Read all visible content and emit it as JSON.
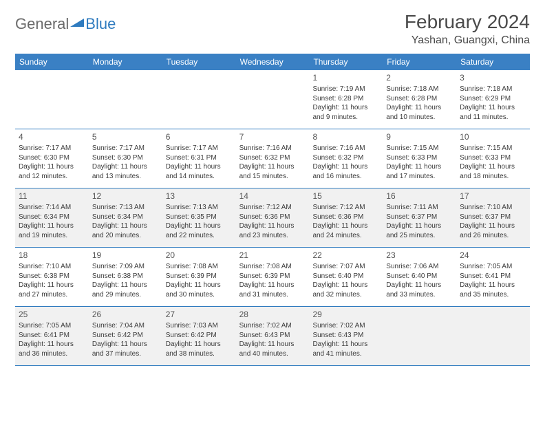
{
  "logo": {
    "general": "General",
    "blue": "Blue",
    "blue_color": "#2f7bbf"
  },
  "title": "February 2024",
  "location": "Yashan, Guangxi, China",
  "colors": {
    "header_bg": "#3a80c4",
    "row_border": "#2f7bbf",
    "shaded_bg": "#f1f1f1"
  },
  "weekdays": [
    "Sunday",
    "Monday",
    "Tuesday",
    "Wednesday",
    "Thursday",
    "Friday",
    "Saturday"
  ],
  "weeks": [
    [
      {
        "n": "",
        "sr": "",
        "ss": "",
        "dl": ""
      },
      {
        "n": "",
        "sr": "",
        "ss": "",
        "dl": ""
      },
      {
        "n": "",
        "sr": "",
        "ss": "",
        "dl": ""
      },
      {
        "n": "",
        "sr": "",
        "ss": "",
        "dl": ""
      },
      {
        "n": "1",
        "sr": "Sunrise: 7:19 AM",
        "ss": "Sunset: 6:28 PM",
        "dl": "Daylight: 11 hours and 9 minutes."
      },
      {
        "n": "2",
        "sr": "Sunrise: 7:18 AM",
        "ss": "Sunset: 6:28 PM",
        "dl": "Daylight: 11 hours and 10 minutes."
      },
      {
        "n": "3",
        "sr": "Sunrise: 7:18 AM",
        "ss": "Sunset: 6:29 PM",
        "dl": "Daylight: 11 hours and 11 minutes."
      }
    ],
    [
      {
        "n": "4",
        "sr": "Sunrise: 7:17 AM",
        "ss": "Sunset: 6:30 PM",
        "dl": "Daylight: 11 hours and 12 minutes."
      },
      {
        "n": "5",
        "sr": "Sunrise: 7:17 AM",
        "ss": "Sunset: 6:30 PM",
        "dl": "Daylight: 11 hours and 13 minutes."
      },
      {
        "n": "6",
        "sr": "Sunrise: 7:17 AM",
        "ss": "Sunset: 6:31 PM",
        "dl": "Daylight: 11 hours and 14 minutes."
      },
      {
        "n": "7",
        "sr": "Sunrise: 7:16 AM",
        "ss": "Sunset: 6:32 PM",
        "dl": "Daylight: 11 hours and 15 minutes."
      },
      {
        "n": "8",
        "sr": "Sunrise: 7:16 AM",
        "ss": "Sunset: 6:32 PM",
        "dl": "Daylight: 11 hours and 16 minutes."
      },
      {
        "n": "9",
        "sr": "Sunrise: 7:15 AM",
        "ss": "Sunset: 6:33 PM",
        "dl": "Daylight: 11 hours and 17 minutes."
      },
      {
        "n": "10",
        "sr": "Sunrise: 7:15 AM",
        "ss": "Sunset: 6:33 PM",
        "dl": "Daylight: 11 hours and 18 minutes."
      }
    ],
    [
      {
        "n": "11",
        "sr": "Sunrise: 7:14 AM",
        "ss": "Sunset: 6:34 PM",
        "dl": "Daylight: 11 hours and 19 minutes."
      },
      {
        "n": "12",
        "sr": "Sunrise: 7:13 AM",
        "ss": "Sunset: 6:34 PM",
        "dl": "Daylight: 11 hours and 20 minutes."
      },
      {
        "n": "13",
        "sr": "Sunrise: 7:13 AM",
        "ss": "Sunset: 6:35 PM",
        "dl": "Daylight: 11 hours and 22 minutes."
      },
      {
        "n": "14",
        "sr": "Sunrise: 7:12 AM",
        "ss": "Sunset: 6:36 PM",
        "dl": "Daylight: 11 hours and 23 minutes."
      },
      {
        "n": "15",
        "sr": "Sunrise: 7:12 AM",
        "ss": "Sunset: 6:36 PM",
        "dl": "Daylight: 11 hours and 24 minutes."
      },
      {
        "n": "16",
        "sr": "Sunrise: 7:11 AM",
        "ss": "Sunset: 6:37 PM",
        "dl": "Daylight: 11 hours and 25 minutes."
      },
      {
        "n": "17",
        "sr": "Sunrise: 7:10 AM",
        "ss": "Sunset: 6:37 PM",
        "dl": "Daylight: 11 hours and 26 minutes."
      }
    ],
    [
      {
        "n": "18",
        "sr": "Sunrise: 7:10 AM",
        "ss": "Sunset: 6:38 PM",
        "dl": "Daylight: 11 hours and 27 minutes."
      },
      {
        "n": "19",
        "sr": "Sunrise: 7:09 AM",
        "ss": "Sunset: 6:38 PM",
        "dl": "Daylight: 11 hours and 29 minutes."
      },
      {
        "n": "20",
        "sr": "Sunrise: 7:08 AM",
        "ss": "Sunset: 6:39 PM",
        "dl": "Daylight: 11 hours and 30 minutes."
      },
      {
        "n": "21",
        "sr": "Sunrise: 7:08 AM",
        "ss": "Sunset: 6:39 PM",
        "dl": "Daylight: 11 hours and 31 minutes."
      },
      {
        "n": "22",
        "sr": "Sunrise: 7:07 AM",
        "ss": "Sunset: 6:40 PM",
        "dl": "Daylight: 11 hours and 32 minutes."
      },
      {
        "n": "23",
        "sr": "Sunrise: 7:06 AM",
        "ss": "Sunset: 6:40 PM",
        "dl": "Daylight: 11 hours and 33 minutes."
      },
      {
        "n": "24",
        "sr": "Sunrise: 7:05 AM",
        "ss": "Sunset: 6:41 PM",
        "dl": "Daylight: 11 hours and 35 minutes."
      }
    ],
    [
      {
        "n": "25",
        "sr": "Sunrise: 7:05 AM",
        "ss": "Sunset: 6:41 PM",
        "dl": "Daylight: 11 hours and 36 minutes."
      },
      {
        "n": "26",
        "sr": "Sunrise: 7:04 AM",
        "ss": "Sunset: 6:42 PM",
        "dl": "Daylight: 11 hours and 37 minutes."
      },
      {
        "n": "27",
        "sr": "Sunrise: 7:03 AM",
        "ss": "Sunset: 6:42 PM",
        "dl": "Daylight: 11 hours and 38 minutes."
      },
      {
        "n": "28",
        "sr": "Sunrise: 7:02 AM",
        "ss": "Sunset: 6:43 PM",
        "dl": "Daylight: 11 hours and 40 minutes."
      },
      {
        "n": "29",
        "sr": "Sunrise: 7:02 AM",
        "ss": "Sunset: 6:43 PM",
        "dl": "Daylight: 11 hours and 41 minutes."
      },
      {
        "n": "",
        "sr": "",
        "ss": "",
        "dl": ""
      },
      {
        "n": "",
        "sr": "",
        "ss": "",
        "dl": ""
      }
    ]
  ]
}
